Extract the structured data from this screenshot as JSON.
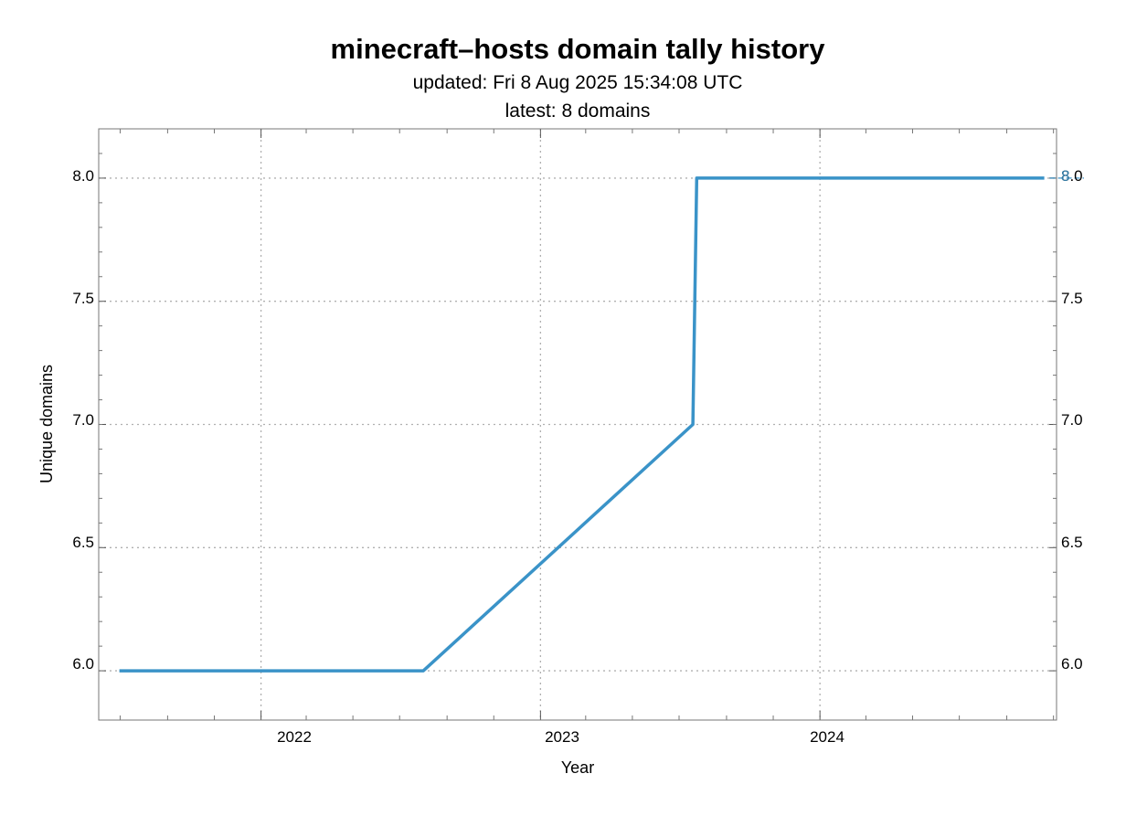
{
  "chart_data": {
    "type": "line",
    "title": "minecraft–hosts domain tally history",
    "subtitle_lines": [
      "updated: Fri 8 Aug 2025 15:34:08 UTC",
      "latest: 8 domains"
    ],
    "xlabel": "Year",
    "ylabel": "Unique domains",
    "x_tick_labels": [
      "2022",
      "2023",
      "2024"
    ],
    "y_tick_labels": [
      "6.0",
      "6.5",
      "7.0",
      "7.5",
      "8.0"
    ],
    "right_end_label": "8",
    "xlim": [
      "2021-06-03",
      "2024-11-05"
    ],
    "ylim": [
      5.8,
      8.2
    ],
    "grid": true,
    "series_color": "#3a93c8",
    "series": [
      {
        "points": [
          [
            "2021-06-30",
            6
          ],
          [
            "2022-08-01",
            6
          ],
          [
            "2023-07-19",
            7
          ],
          [
            "2023-07-24",
            8
          ],
          [
            "2024-10-20",
            8
          ]
        ]
      }
    ]
  }
}
